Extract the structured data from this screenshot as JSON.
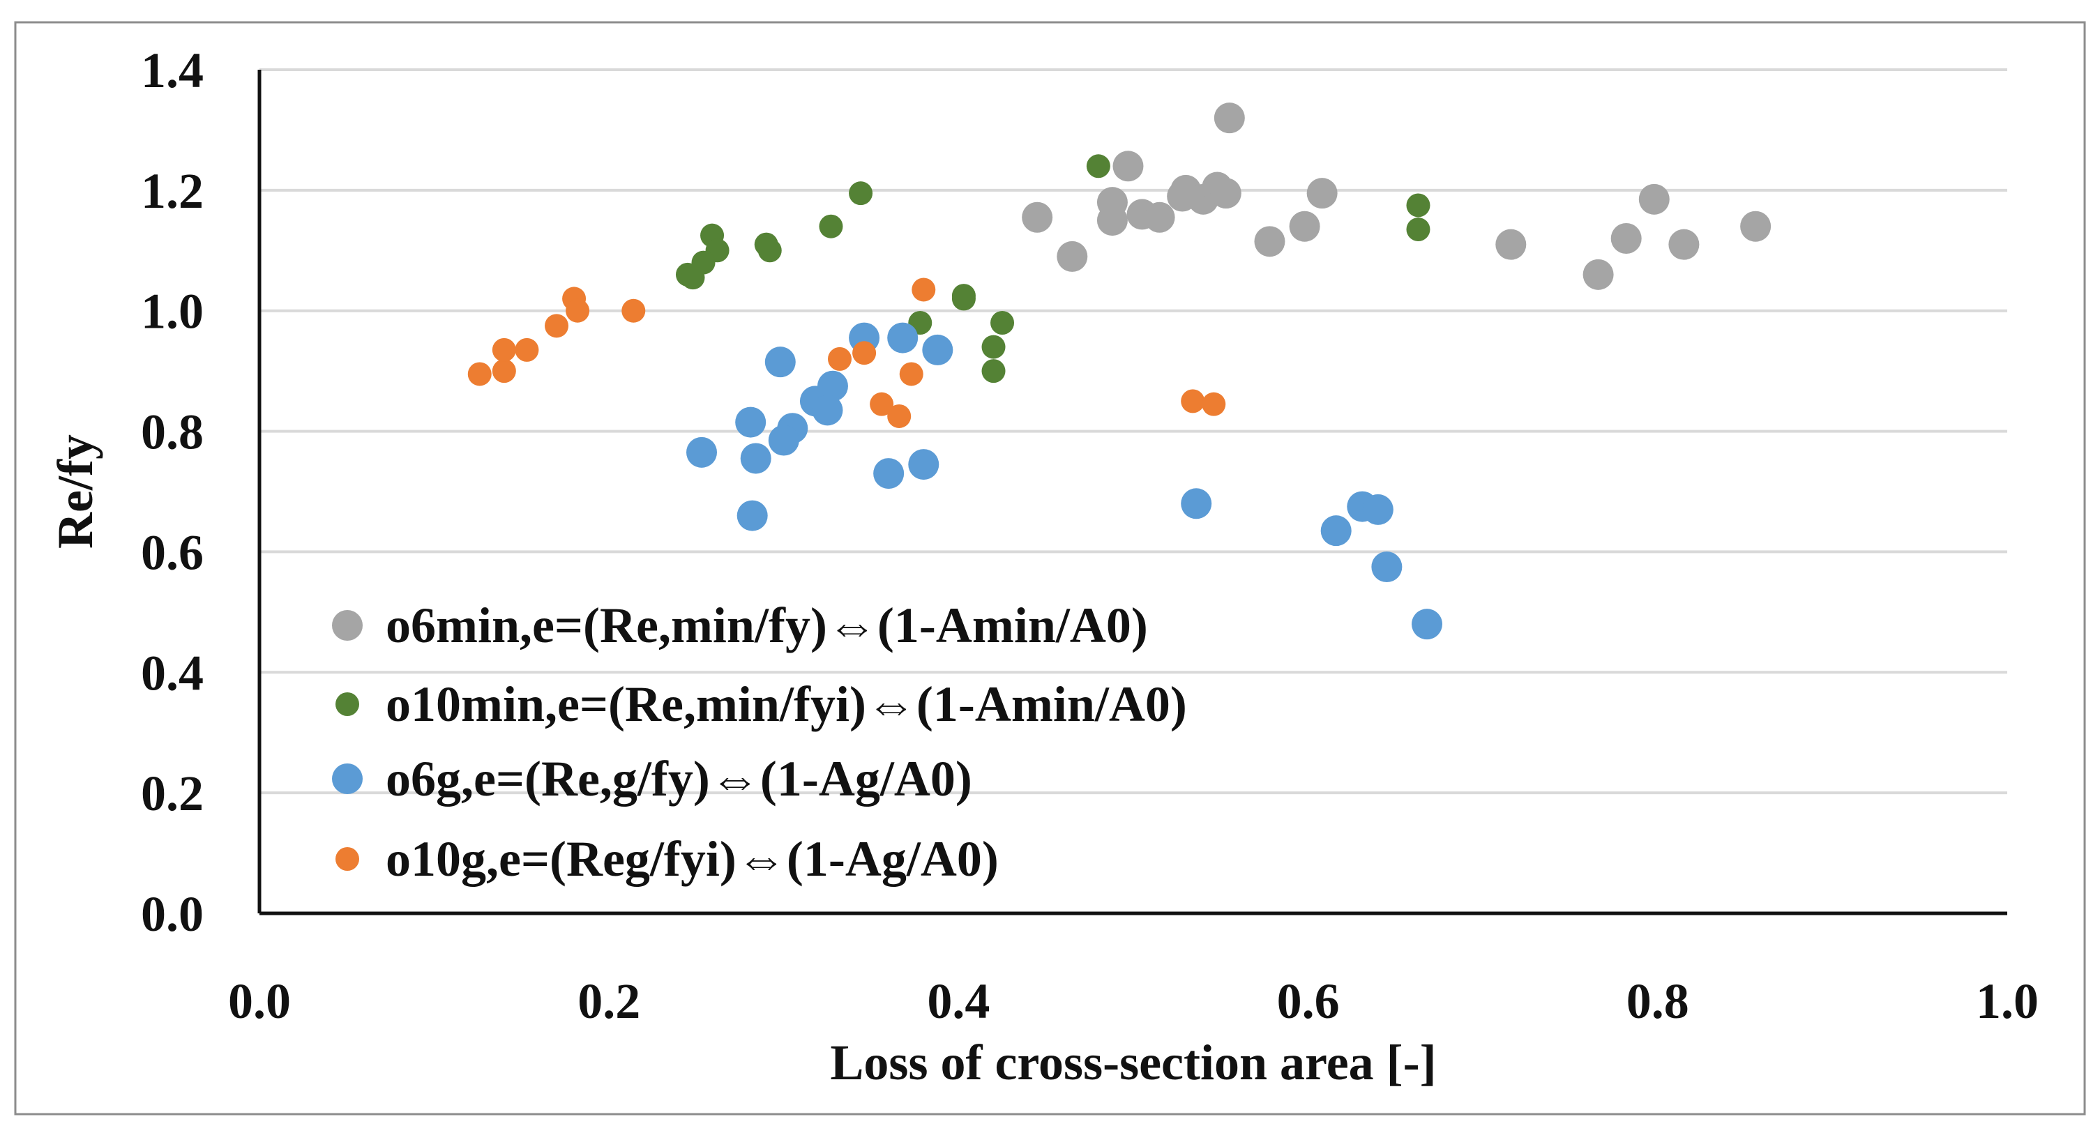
{
  "chart_data": {
    "type": "scatter",
    "title": "",
    "xlabel": "Loss of cross-section area [-]",
    "ylabel": "Re/fy",
    "xlim": [
      0,
      1
    ],
    "ylim": [
      0,
      1.4
    ],
    "x_ticks": [
      "0.0",
      "0.2",
      "0.4",
      "0.6",
      "0.8",
      "1.0"
    ],
    "y_ticks": [
      "0.0",
      "0.2",
      "0.4",
      "0.6",
      "0.8",
      "1.0",
      "1.2",
      "1.4"
    ],
    "grid": "horizontal",
    "legend_position": "bottom-left inside",
    "series": [
      {
        "name": "ο6min,e=(Re,min/fy)⇔(1-Amin/A0)",
        "color": "#A5A5A5",
        "marker": "large",
        "points": [
          [
            0.555,
            1.32
          ],
          [
            0.497,
            1.24
          ],
          [
            0.445,
            1.155
          ],
          [
            0.465,
            1.09
          ],
          [
            0.488,
            1.18
          ],
          [
            0.488,
            1.15
          ],
          [
            0.505,
            1.16
          ],
          [
            0.515,
            1.155
          ],
          [
            0.53,
            1.2
          ],
          [
            0.528,
            1.19
          ],
          [
            0.54,
            1.185
          ],
          [
            0.548,
            1.205
          ],
          [
            0.553,
            1.195
          ],
          [
            0.578,
            1.115
          ],
          [
            0.598,
            1.14
          ],
          [
            0.608,
            1.195
          ],
          [
            0.716,
            1.11
          ],
          [
            0.766,
            1.06
          ],
          [
            0.782,
            1.12
          ],
          [
            0.798,
            1.185
          ],
          [
            0.815,
            1.11
          ],
          [
            0.856,
            1.14
          ]
        ]
      },
      {
        "name": "ο10min,e=(Re,min/fyi)⇔(1-Amin/A0)",
        "color": "#548235",
        "marker": "small",
        "points": [
          [
            0.48,
            1.24
          ],
          [
            0.344,
            1.195
          ],
          [
            0.259,
            1.125
          ],
          [
            0.262,
            1.1
          ],
          [
            0.254,
            1.08
          ],
          [
            0.245,
            1.06
          ],
          [
            0.248,
            1.055
          ],
          [
            0.29,
            1.11
          ],
          [
            0.292,
            1.1
          ],
          [
            0.327,
            1.14
          ],
          [
            0.663,
            1.175
          ],
          [
            0.663,
            1.135
          ],
          [
            0.403,
            1.025
          ],
          [
            0.403,
            1.02
          ],
          [
            0.378,
            0.98
          ],
          [
            0.425,
            0.98
          ],
          [
            0.42,
            0.94
          ],
          [
            0.42,
            0.9
          ]
        ]
      },
      {
        "name": "ο6g,e=(Re,g/fy)⇔(1-Ag/A0)",
        "color": "#5B9BD5",
        "marker": "large",
        "points": [
          [
            0.298,
            0.915
          ],
          [
            0.346,
            0.955
          ],
          [
            0.368,
            0.955
          ],
          [
            0.388,
            0.935
          ],
          [
            0.318,
            0.85
          ],
          [
            0.328,
            0.875
          ],
          [
            0.325,
            0.835
          ],
          [
            0.305,
            0.805
          ],
          [
            0.3,
            0.785
          ],
          [
            0.281,
            0.815
          ],
          [
            0.284,
            0.755
          ],
          [
            0.253,
            0.765
          ],
          [
            0.36,
            0.73
          ],
          [
            0.38,
            0.745
          ],
          [
            0.282,
            0.66
          ],
          [
            0.536,
            0.68
          ],
          [
            0.631,
            0.675
          ],
          [
            0.64,
            0.67
          ],
          [
            0.616,
            0.635
          ],
          [
            0.645,
            0.575
          ],
          [
            0.668,
            0.48
          ]
        ]
      },
      {
        "name": "ο10g,e=(Reg/fyi)⇔(1-Ag/A0)",
        "color": "#ED7D31",
        "marker": "small",
        "points": [
          [
            0.126,
            0.895
          ],
          [
            0.14,
            0.9
          ],
          [
            0.14,
            0.935
          ],
          [
            0.153,
            0.935
          ],
          [
            0.17,
            0.975
          ],
          [
            0.18,
            1.02
          ],
          [
            0.182,
            1.0
          ],
          [
            0.214,
            1.0
          ],
          [
            0.332,
            0.92
          ],
          [
            0.346,
            0.93
          ],
          [
            0.38,
            1.035
          ],
          [
            0.373,
            0.895
          ],
          [
            0.356,
            0.845
          ],
          [
            0.366,
            0.825
          ],
          [
            0.534,
            0.85
          ],
          [
            0.546,
            0.845
          ]
        ]
      }
    ]
  }
}
